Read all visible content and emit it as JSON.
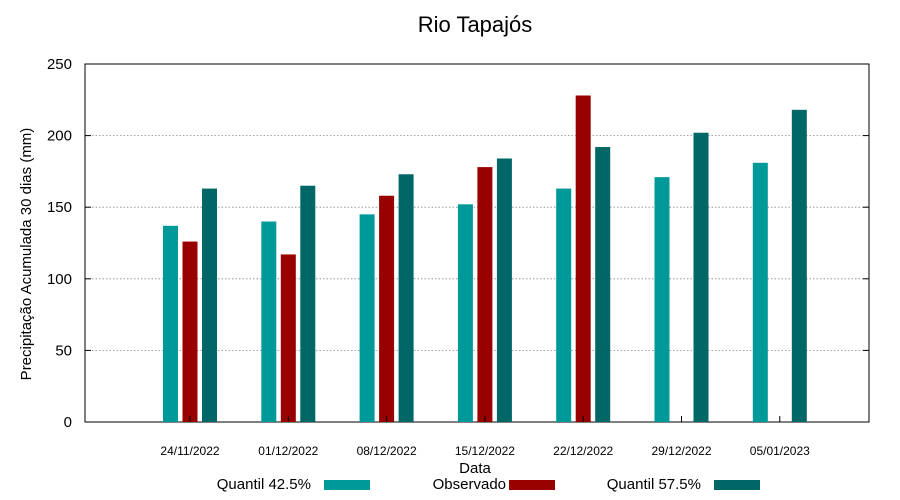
{
  "chart_data": {
    "type": "bar",
    "title": "Rio Tapajós",
    "xlabel": "Data",
    "ylabel": "Precipitação Acumulada 30 dias (mm)",
    "ylim": [
      0,
      250
    ],
    "yticks": [
      0,
      50,
      100,
      150,
      200,
      250
    ],
    "grid": true,
    "legend_position": "bottom",
    "categories": [
      "24/11/2022",
      "01/12/2022",
      "08/12/2022",
      "15/12/2022",
      "22/12/2022",
      "29/12/2022",
      "05/01/2023"
    ],
    "series": [
      {
        "name": "Quantil 42.5%",
        "color": "#009999",
        "values": [
          137,
          140,
          145,
          152,
          163,
          171,
          181
        ]
      },
      {
        "name": "Observado",
        "color": "#990000",
        "values": [
          126,
          117,
          158,
          178,
          228,
          null,
          null
        ]
      },
      {
        "name": "Quantil 57.5%",
        "color": "#006666",
        "values": [
          163,
          165,
          173,
          184,
          192,
          202,
          218
        ]
      }
    ]
  }
}
